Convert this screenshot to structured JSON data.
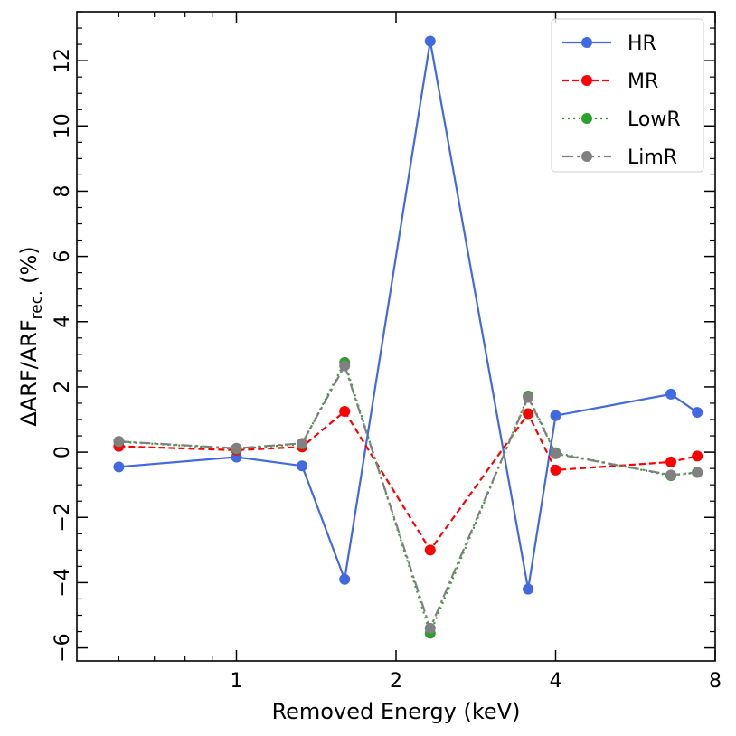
{
  "chart_data": {
    "type": "line",
    "xscale": "log",
    "xlabel": "Removed Energy (keV)",
    "ylabel": {
      "prefix": "ΔARF/ARF",
      "subscript": "rec.",
      "suffix": " (%)"
    },
    "xlim": [
      0.5,
      8
    ],
    "ylim": [
      -6.4,
      13.5
    ],
    "x_ticks": [
      {
        "value": 1,
        "label": "1"
      },
      {
        "value": 2,
        "label": "2"
      },
      {
        "value": 4,
        "label": "4"
      },
      {
        "value": 8,
        "label": "8"
      }
    ],
    "y_ticks": [
      {
        "value": -6,
        "label": "−6"
      },
      {
        "value": -4,
        "label": "−4"
      },
      {
        "value": -2,
        "label": "−2"
      },
      {
        "value": 0,
        "label": "0"
      },
      {
        "value": 2,
        "label": "2"
      },
      {
        "value": 4,
        "label": "4"
      },
      {
        "value": 6,
        "label": "6"
      },
      {
        "value": 8,
        "label": "8"
      },
      {
        "value": 10,
        "label": "10"
      },
      {
        "value": 12,
        "label": "12"
      }
    ],
    "x": [
      0.6,
      1.0,
      1.33,
      1.6,
      2.32,
      3.55,
      4.0,
      6.6,
      7.4
    ],
    "legend_position": "top-right",
    "series": [
      {
        "name": "HR",
        "color": "#4169E1",
        "dash": "solid",
        "values": [
          -0.45,
          -0.15,
          -0.42,
          -3.9,
          12.6,
          -4.2,
          1.12,
          1.78,
          1.22
        ]
      },
      {
        "name": "MR",
        "color": "#FF0000",
        "dash": "dashed",
        "values": [
          0.18,
          0.06,
          0.16,
          1.25,
          -3.0,
          1.18,
          -0.55,
          -0.3,
          -0.12
        ]
      },
      {
        "name": "LowR",
        "color": "#2CA02C",
        "dash": "dotted",
        "values": [
          0.32,
          0.1,
          0.25,
          2.75,
          -5.55,
          1.72,
          -0.02,
          -0.72,
          -0.62
        ]
      },
      {
        "name": "LimR",
        "color": "#808080",
        "dash": "dashdot",
        "values": [
          0.33,
          0.12,
          0.27,
          2.65,
          -5.4,
          1.68,
          -0.05,
          -0.7,
          -0.62
        ]
      }
    ]
  }
}
